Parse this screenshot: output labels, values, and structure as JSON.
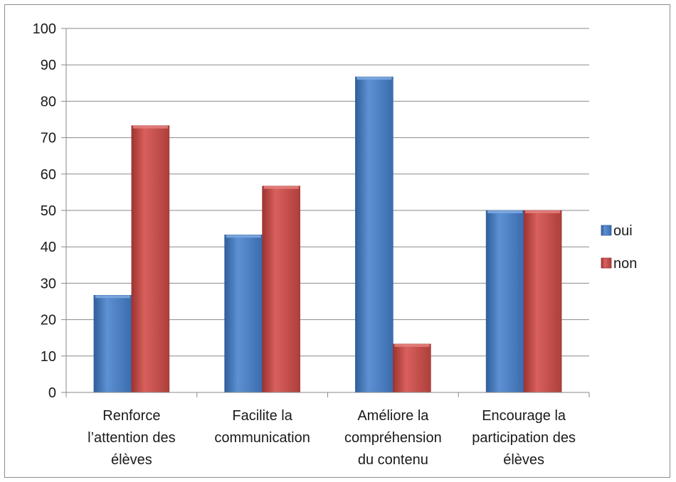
{
  "chart_data": {
    "type": "bar",
    "categories": [
      [
        "Renforce",
        "l’attention des",
        "élèves"
      ],
      [
        "Facilite la",
        "communication"
      ],
      [
        "Améliore la",
        "compréhension",
        "du contenu"
      ],
      [
        "Encourage la",
        "participation des",
        "élèves"
      ]
    ],
    "series": [
      {
        "name": "oui",
        "values": [
          26.7,
          43.3,
          86.7,
          50
        ],
        "color": "#4a7ebf"
      },
      {
        "name": "non",
        "values": [
          73.3,
          56.7,
          13.3,
          50
        ],
        "color": "#c0504d"
      }
    ],
    "ylim": [
      0,
      100
    ],
    "yticks": [
      "0",
      "10",
      "20",
      "30",
      "40",
      "50",
      "60",
      "70",
      "80",
      "90",
      "100"
    ],
    "grid": true,
    "legend_position": "right"
  }
}
